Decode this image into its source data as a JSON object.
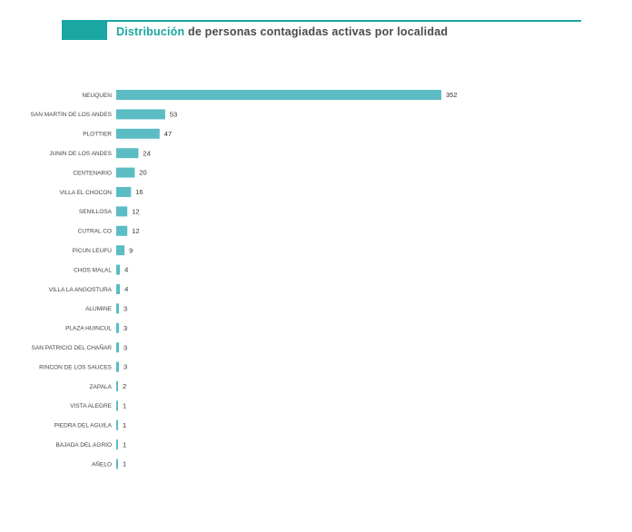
{
  "header": {
    "title_accent": "Distribución",
    "title_rest": " de personas contagiadas activas por localidad"
  },
  "colors": {
    "bar": "#5bbcc4",
    "accent": "#1aa7a1"
  },
  "chart_data": {
    "type": "bar",
    "orientation": "horizontal",
    "categories": [
      "NEUQUEN",
      "SAN MARTIN DE LOS ANDES",
      "PLOTTIER",
      "JUNIN DE LOS ANDES",
      "CENTENARIO",
      "VILLA EL CHOCON",
      "SENILLOSA",
      "CUTRAL CO",
      "PICUN LEUFU",
      "CHOS MALAL",
      "VILLA LA ANGOSTURA",
      "ALUMINE",
      "PLAZA HUINCUL",
      "SAN PATRICIO DEL CHAÑAR",
      "RINCON DE LOS SAUCES",
      "ZAPALA",
      "VISTA ALEGRE",
      "PIEDRA DEL AGUILA",
      "BAJADA DEL AGRIO",
      "AÑELO"
    ],
    "values": [
      352,
      53,
      47,
      24,
      20,
      16,
      12,
      12,
      9,
      4,
      4,
      3,
      3,
      3,
      3,
      2,
      1,
      1,
      1,
      1
    ],
    "xlim": [
      0,
      352
    ],
    "grid": false,
    "legend": "none"
  }
}
